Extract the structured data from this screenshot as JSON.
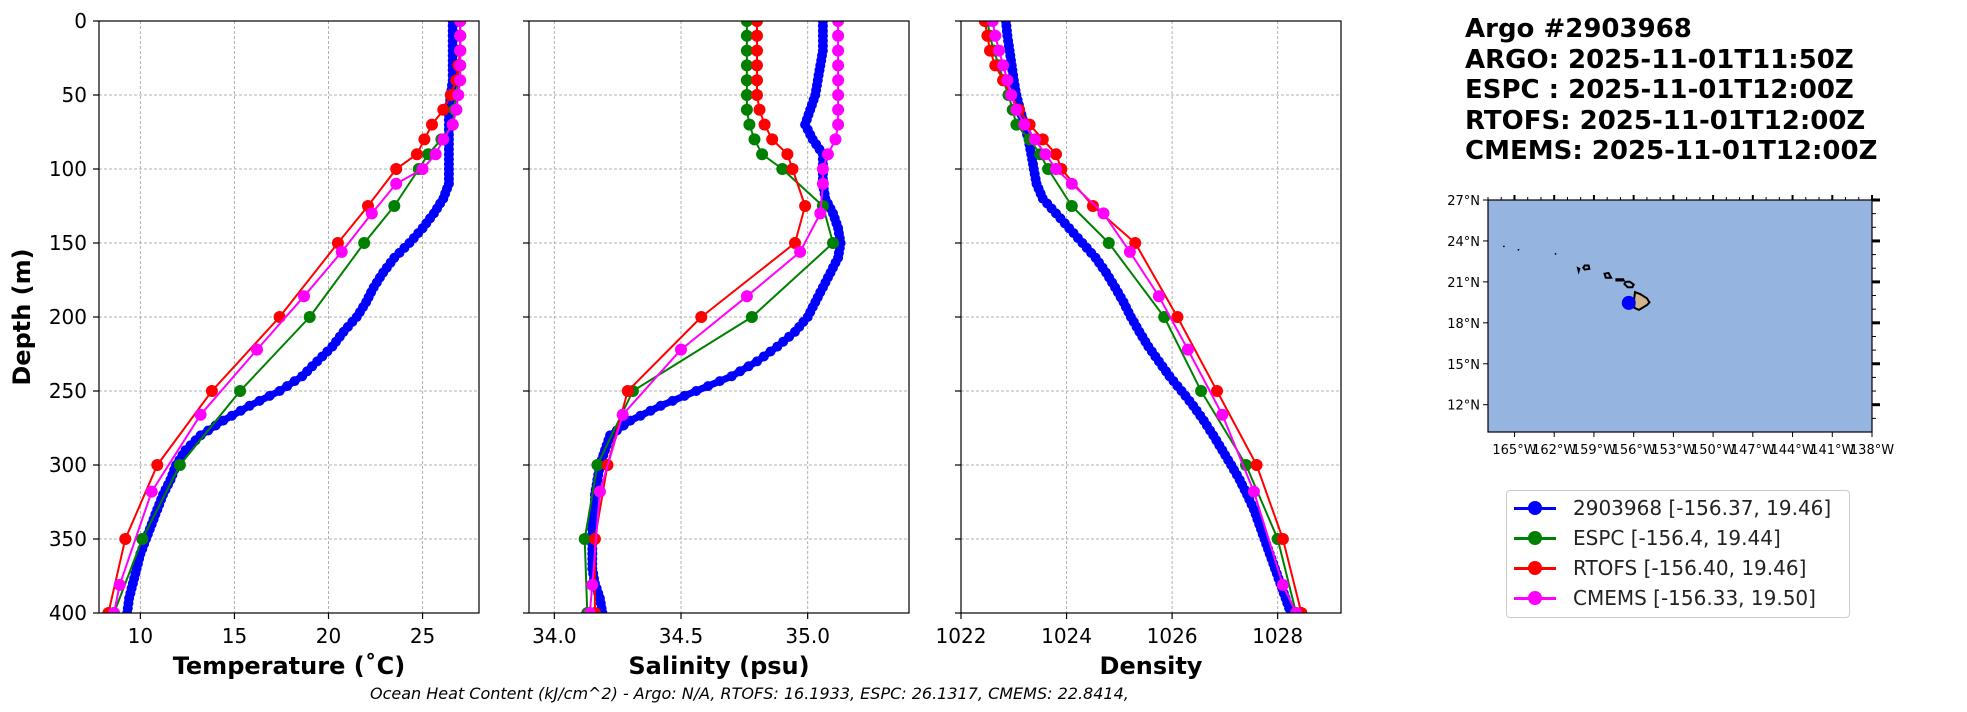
{
  "title_lines": [
    "Argo #2903968",
    "ARGO: 2025-11-01T11:50Z",
    "ESPC : 2025-11-01T12:00Z",
    "RTOFS: 2025-11-01T12:00Z",
    "CMEMS: 2025-11-01T12:00Z"
  ],
  "footnote": "Ocean Heat Content (kJ/cm^2) - Argo: N/A,  RTOFS: 16.1933,  ESPC: 26.1317,  CMEMS: 22.8414,",
  "colors": {
    "argo": "#0000ff",
    "espc": "#008000",
    "rtofs": "#ff0000",
    "cmems": "#ff00ff",
    "ocean": "#96b4e0",
    "land": "#d2b48c"
  },
  "chart_data": [
    {
      "type": "line",
      "title": "",
      "xlabel": "Temperature (˚C)",
      "ylabel": "Depth (m)",
      "xlim": [
        7.8,
        28
      ],
      "ylim": [
        400,
        0
      ],
      "xticks": [
        10,
        15,
        20,
        25
      ],
      "yticks": [
        0,
        50,
        100,
        150,
        200,
        250,
        300,
        350,
        400
      ],
      "grid": true,
      "series": [
        {
          "name": "2903968",
          "color": "#0000ff",
          "thick": true,
          "depth": [
            0,
            10,
            20,
            30,
            40,
            50,
            60,
            70,
            80,
            90,
            100,
            110,
            120,
            130,
            140,
            150,
            160,
            170,
            180,
            190,
            200,
            210,
            220,
            230,
            240,
            250,
            260,
            270,
            280,
            290,
            300,
            310,
            320,
            330,
            340,
            350,
            360,
            370,
            380,
            390,
            400
          ],
          "values": [
            26.6,
            26.6,
            26.6,
            26.6,
            26.6,
            26.5,
            26.4,
            26.4,
            26.4,
            26.4,
            26.4,
            26.4,
            26.1,
            25.6,
            25.0,
            24.3,
            23.5,
            22.9,
            22.4,
            22.0,
            21.5,
            20.8,
            20.2,
            19.4,
            18.6,
            17.4,
            15.8,
            14.4,
            13.2,
            12.4,
            11.9,
            11.6,
            11.2,
            10.9,
            10.6,
            10.3,
            10.0,
            9.8,
            9.6,
            9.4,
            9.3
          ]
        },
        {
          "name": "ESPC",
          "color": "#008000",
          "depth": [
            0,
            10,
            20,
            30,
            40,
            50,
            60,
            70,
            80,
            90,
            100,
            125,
            150,
            200,
            250,
            300,
            350,
            400
          ],
          "values": [
            27.0,
            27.0,
            27.0,
            27.0,
            26.9,
            26.8,
            26.7,
            26.6,
            26.0,
            25.3,
            24.8,
            23.5,
            21.9,
            19.0,
            15.3,
            12.1,
            10.1,
            8.6
          ]
        },
        {
          "name": "RTOFS",
          "color": "#ff0000",
          "depth": [
            0,
            10,
            20,
            30,
            40,
            50,
            60,
            70,
            80,
            90,
            100,
            125,
            150,
            200,
            250,
            300,
            350,
            400
          ],
          "values": [
            27.0,
            27.0,
            27.0,
            26.9,
            26.8,
            26.5,
            26.1,
            25.5,
            25.1,
            24.7,
            23.6,
            22.1,
            20.5,
            17.4,
            13.8,
            10.9,
            9.2,
            8.3
          ]
        },
        {
          "name": "CMEMS",
          "color": "#ff00ff",
          "depth": [
            0,
            10,
            20,
            30,
            40,
            50,
            60,
            70,
            80,
            90,
            100,
            110,
            130,
            156,
            186,
            222,
            266,
            318,
            381,
            400
          ],
          "values": [
            27.0,
            27.0,
            27.0,
            27.0,
            27.0,
            26.9,
            26.8,
            26.6,
            26.1,
            25.7,
            25.0,
            23.6,
            22.3,
            20.7,
            18.7,
            16.2,
            13.2,
            10.6,
            8.9,
            8.6
          ]
        }
      ]
    },
    {
      "type": "line",
      "title": "",
      "xlabel": "Salinity (psu)",
      "ylabel": "",
      "xlim": [
        33.9,
        35.4
      ],
      "ylim": [
        400,
        0
      ],
      "xticks": [
        34.0,
        34.5,
        35.0
      ],
      "xticklabels": [
        "34.0",
        "34.5",
        "35.0"
      ],
      "yticks": [
        0,
        50,
        100,
        150,
        200,
        250,
        300,
        350,
        400
      ],
      "grid": true,
      "series": [
        {
          "name": "2903968",
          "color": "#0000ff",
          "thick": true,
          "depth": [
            0,
            10,
            20,
            30,
            40,
            50,
            60,
            70,
            80,
            90,
            100,
            110,
            120,
            130,
            140,
            150,
            160,
            170,
            180,
            190,
            200,
            210,
            220,
            230,
            240,
            250,
            260,
            270,
            280,
            290,
            300,
            310,
            320,
            330,
            340,
            350,
            360,
            370,
            380,
            390,
            400
          ],
          "values": [
            35.06,
            35.06,
            35.06,
            35.05,
            35.04,
            35.03,
            35.01,
            34.99,
            35.02,
            35.06,
            35.06,
            35.06,
            35.07,
            35.1,
            35.12,
            35.13,
            35.12,
            35.09,
            35.06,
            35.03,
            35.0,
            34.95,
            34.88,
            34.8,
            34.7,
            34.56,
            34.42,
            34.3,
            34.22,
            34.2,
            34.18,
            34.17,
            34.16,
            34.16,
            34.15,
            34.15,
            34.15,
            34.15,
            34.16,
            34.18,
            34.19
          ]
        },
        {
          "name": "ESPC",
          "color": "#008000",
          "depth": [
            0,
            10,
            20,
            30,
            40,
            50,
            60,
            70,
            80,
            90,
            100,
            125,
            150,
            200,
            250,
            300,
            350,
            400
          ],
          "values": [
            34.76,
            34.76,
            34.76,
            34.76,
            34.76,
            34.76,
            34.76,
            34.77,
            34.79,
            34.82,
            34.9,
            35.06,
            35.1,
            34.78,
            34.31,
            34.17,
            34.12,
            34.13
          ]
        },
        {
          "name": "RTOFS",
          "color": "#ff0000",
          "depth": [
            0,
            10,
            20,
            30,
            40,
            50,
            60,
            70,
            80,
            90,
            100,
            125,
            150,
            200,
            250,
            300,
            350,
            400
          ],
          "values": [
            34.8,
            34.8,
            34.8,
            34.8,
            34.8,
            34.8,
            34.81,
            34.83,
            34.86,
            34.92,
            34.94,
            34.99,
            34.95,
            34.58,
            34.29,
            34.21,
            34.16,
            34.16
          ]
        },
        {
          "name": "CMEMS",
          "color": "#ff00ff",
          "depth": [
            0,
            10,
            20,
            30,
            40,
            50,
            60,
            70,
            80,
            90,
            100,
            110,
            130,
            156,
            186,
            222,
            266,
            318,
            381,
            400
          ],
          "values": [
            35.12,
            35.12,
            35.12,
            35.12,
            35.12,
            35.12,
            35.12,
            35.12,
            35.11,
            35.08,
            35.06,
            35.06,
            35.05,
            34.97,
            34.76,
            34.5,
            34.27,
            34.18,
            34.15,
            34.14
          ]
        }
      ]
    },
    {
      "type": "line",
      "title": "",
      "xlabel": "Density",
      "ylabel": "",
      "xlim": [
        1022,
        1029.2
      ],
      "ylim": [
        400,
        0
      ],
      "xticks": [
        1022,
        1024,
        1026,
        1028
      ],
      "yticks": [
        0,
        50,
        100,
        150,
        200,
        250,
        300,
        350,
        400
      ],
      "grid": true,
      "series": [
        {
          "name": "2903968",
          "color": "#0000ff",
          "thick": true,
          "depth": [
            0,
            10,
            20,
            30,
            40,
            50,
            60,
            70,
            80,
            90,
            100,
            110,
            120,
            130,
            140,
            150,
            160,
            170,
            180,
            190,
            200,
            210,
            220,
            230,
            240,
            250,
            260,
            270,
            280,
            290,
            300,
            310,
            320,
            330,
            340,
            350,
            360,
            370,
            380,
            390,
            400
          ],
          "values": [
            1022.85,
            1022.88,
            1022.92,
            1022.96,
            1023.0,
            1023.05,
            1023.12,
            1023.2,
            1023.28,
            1023.33,
            1023.38,
            1023.43,
            1023.55,
            1023.8,
            1024.05,
            1024.3,
            1024.55,
            1024.75,
            1024.92,
            1025.08,
            1025.22,
            1025.38,
            1025.55,
            1025.75,
            1025.95,
            1026.18,
            1026.4,
            1026.6,
            1026.78,
            1026.95,
            1027.12,
            1027.28,
            1027.42,
            1027.55,
            1027.65,
            1027.75,
            1027.85,
            1027.95,
            1028.05,
            1028.15,
            1028.25
          ]
        },
        {
          "name": "ESPC",
          "color": "#008000",
          "depth": [
            0,
            10,
            20,
            30,
            40,
            50,
            60,
            70,
            80,
            90,
            100,
            125,
            150,
            200,
            250,
            300,
            350,
            400
          ],
          "values": [
            1022.5,
            1022.55,
            1022.62,
            1022.72,
            1022.8,
            1022.9,
            1022.98,
            1023.05,
            1023.3,
            1023.5,
            1023.65,
            1024.1,
            1024.8,
            1025.85,
            1026.55,
            1027.4,
            1028.0,
            1028.35
          ]
        },
        {
          "name": "RTOFS",
          "color": "#ff0000",
          "depth": [
            0,
            10,
            20,
            30,
            40,
            50,
            60,
            70,
            80,
            90,
            100,
            125,
            150,
            200,
            250,
            300,
            350,
            400
          ],
          "values": [
            1022.45,
            1022.5,
            1022.55,
            1022.65,
            1022.8,
            1022.95,
            1023.1,
            1023.3,
            1023.55,
            1023.8,
            1023.9,
            1024.5,
            1025.3,
            1026.1,
            1026.85,
            1027.6,
            1028.1,
            1028.45
          ]
        },
        {
          "name": "CMEMS",
          "color": "#ff00ff",
          "depth": [
            0,
            10,
            20,
            30,
            40,
            50,
            60,
            70,
            80,
            90,
            100,
            110,
            130,
            156,
            186,
            222,
            266,
            318,
            381,
            400
          ],
          "values": [
            1022.6,
            1022.65,
            1022.72,
            1022.8,
            1022.88,
            1022.95,
            1023.05,
            1023.2,
            1023.4,
            1023.6,
            1023.8,
            1024.1,
            1024.7,
            1025.2,
            1025.75,
            1026.3,
            1026.95,
            1027.55,
            1028.1,
            1028.35
          ]
        }
      ]
    },
    {
      "type": "map",
      "xlim": [
        -167,
        -138
      ],
      "ylim": [
        10,
        27
      ],
      "xticks": [
        -165,
        -162,
        -159,
        -156,
        -153,
        -150,
        -147,
        -144,
        -141,
        -138
      ],
      "xticklabels": [
        "165°W",
        "162°W",
        "159°W",
        "156°W",
        "153°W",
        "150°W",
        "147°W",
        "144°W",
        "141°W",
        "138°W"
      ],
      "yticks": [
        27,
        24,
        21,
        18,
        15,
        12
      ],
      "yticklabels": [
        "27°N",
        "24°N",
        "21°N",
        "18°N",
        "15°N",
        "12°N"
      ],
      "marker": {
        "name": "2903968",
        "lon": -156.37,
        "lat": 19.46
      },
      "islands": [
        {
          "name": "Hawaii",
          "lonlat": [
            [
              -155.9,
              20.25
            ],
            [
              -155.5,
              20.1
            ],
            [
              -155.0,
              19.8
            ],
            [
              -154.8,
              19.5
            ],
            [
              -155.0,
              19.3
            ],
            [
              -155.6,
              18.95
            ],
            [
              -155.95,
              19.1
            ],
            [
              -155.98,
              19.6
            ],
            [
              -155.9,
              20.25
            ]
          ],
          "land": true
        },
        {
          "name": "Maui",
          "lonlat": [
            [
              -156.6,
              21.0
            ],
            [
              -156.3,
              21.02
            ],
            [
              -156.0,
              20.8
            ],
            [
              -156.1,
              20.6
            ],
            [
              -156.45,
              20.6
            ],
            [
              -156.7,
              20.85
            ],
            [
              -156.6,
              21.0
            ]
          ]
        },
        {
          "name": "Molokai",
          "lonlat": [
            [
              -157.3,
              21.2
            ],
            [
              -156.8,
              21.2
            ],
            [
              -156.75,
              21.1
            ],
            [
              -157.3,
              21.1
            ],
            [
              -157.3,
              21.2
            ]
          ]
        },
        {
          "name": "Oahu",
          "lonlat": [
            [
              -158.2,
              21.6
            ],
            [
              -157.9,
              21.65
            ],
            [
              -157.7,
              21.3
            ],
            [
              -158.1,
              21.3
            ],
            [
              -158.2,
              21.6
            ]
          ]
        },
        {
          "name": "Kauai",
          "lonlat": [
            [
              -159.7,
              22.2
            ],
            [
              -159.4,
              22.2
            ],
            [
              -159.35,
              21.95
            ],
            [
              -159.7,
              21.9
            ],
            [
              -159.8,
              22.05
            ],
            [
              -159.7,
              22.2
            ]
          ]
        },
        {
          "name": "Niihau",
          "lonlat": [
            [
              -160.2,
              22.0
            ],
            [
              -160.1,
              21.95
            ],
            [
              -160.15,
              21.8
            ],
            [
              -160.2,
              22.0
            ]
          ]
        }
      ],
      "specks": [
        [
          -165.8,
          23.6
        ],
        [
          -164.7,
          23.35
        ],
        [
          -161.9,
          23.05
        ]
      ]
    }
  ],
  "legend": [
    {
      "label": "2903968 [-156.37, 19.46]",
      "color": "#0000ff"
    },
    {
      "label": "ESPC [-156.4, 19.44]",
      "color": "#008000"
    },
    {
      "label": "RTOFS [-156.40, 19.46]",
      "color": "#ff0000"
    },
    {
      "label": "CMEMS [-156.33, 19.50]",
      "color": "#ff00ff"
    }
  ]
}
